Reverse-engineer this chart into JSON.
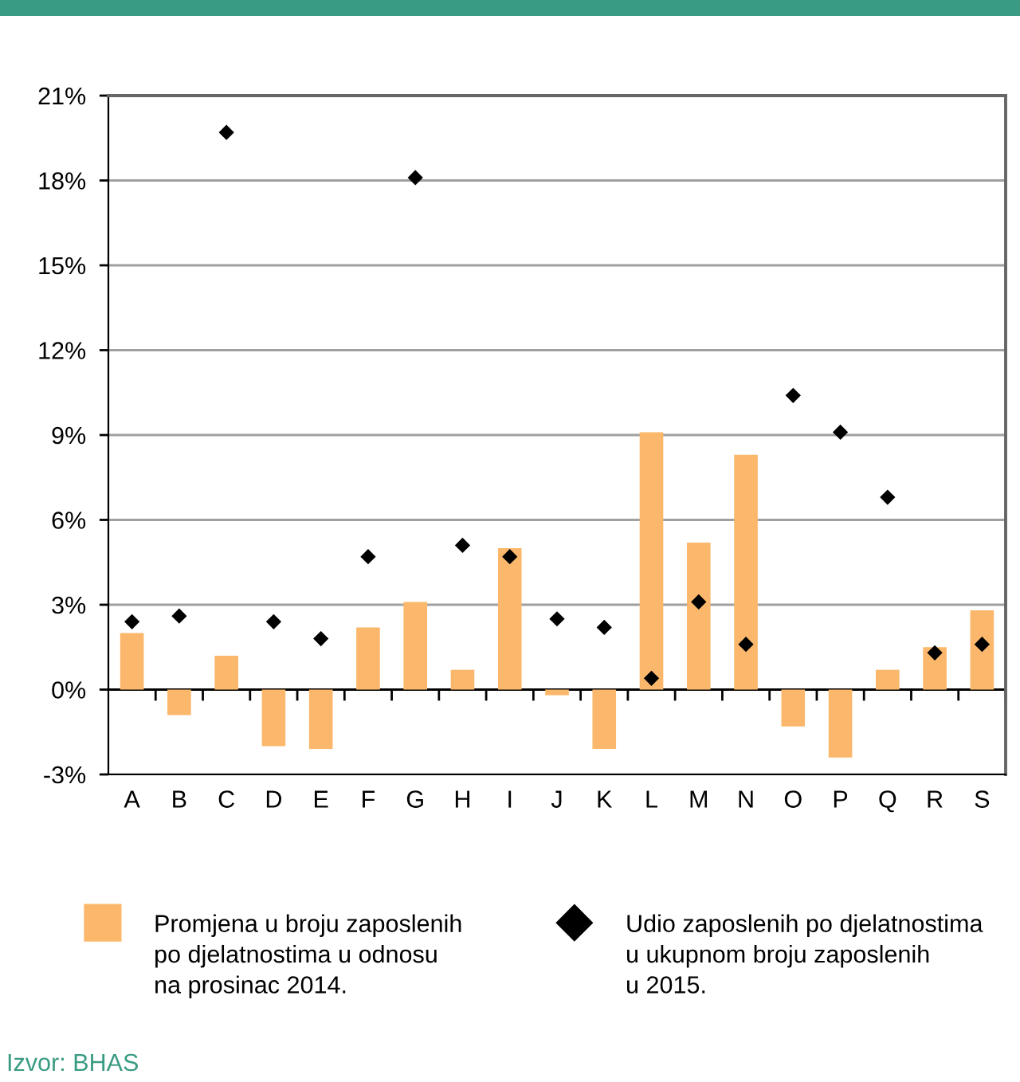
{
  "chart_data": {
    "type": "bar",
    "categories": [
      "A",
      "B",
      "C",
      "D",
      "E",
      "F",
      "G",
      "H",
      "I",
      "J",
      "K",
      "L",
      "M",
      "N",
      "O",
      "P",
      "Q",
      "R",
      "S"
    ],
    "series": [
      {
        "name": "Promjena u broju zaposlenih\npo djelatnostima u odnosu\nna prosinac 2014.",
        "color": "#fbb86c",
        "values": [
          2.0,
          -0.9,
          1.2,
          -2.0,
          -2.1,
          2.2,
          3.1,
          0.7,
          5.0,
          -0.2,
          -2.1,
          9.1,
          5.2,
          8.3,
          -1.3,
          -2.4,
          0.7,
          1.5,
          2.8
        ]
      },
      {
        "name": "Udio zaposlenih po djelatnostima\nu ukupnom broju zaposlenih\nu 2015.",
        "type": "scatter",
        "marker": "diamond",
        "color": "#000000",
        "values": [
          2.4,
          2.6,
          19.7,
          2.4,
          1.8,
          4.7,
          18.1,
          5.1,
          4.7,
          2.5,
          2.2,
          0.4,
          3.1,
          1.6,
          10.4,
          9.1,
          6.8,
          1.3,
          1.6
        ]
      }
    ],
    "ylim": [
      -3,
      21
    ],
    "yticks": [
      {
        "value": -3,
        "label": "-3%"
      },
      {
        "value": 0,
        "label": "0%"
      },
      {
        "value": 3,
        "label": "3%"
      },
      {
        "value": 6,
        "label": "6%"
      },
      {
        "value": 9,
        "label": "9%"
      },
      {
        "value": 12,
        "label": "12%"
      },
      {
        "value": 15,
        "label": "15%"
      },
      {
        "value": 18,
        "label": "18%"
      },
      {
        "value": 21,
        "label": "21%"
      }
    ],
    "grid": "y",
    "legend": "bottom",
    "annotations": [
      "Izvor: BHAS"
    ]
  }
}
